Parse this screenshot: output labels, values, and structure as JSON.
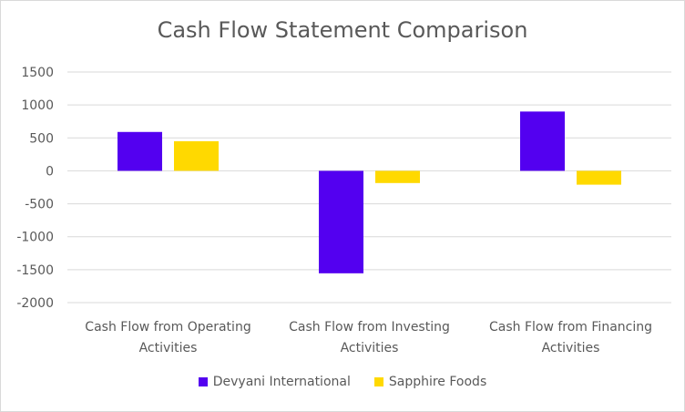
{
  "chart_data": {
    "type": "bar",
    "title": "Cash Flow Statement Comparison",
    "categories": [
      [
        "Cash Flow from Operating",
        "Activities"
      ],
      [
        "Cash Flow from Investing",
        "Activities"
      ],
      [
        "Cash Flow from Financing",
        "Activities"
      ]
    ],
    "series": [
      {
        "name": "Devyani International",
        "color": "#5300F0",
        "values": [
          590,
          -1555,
          900
        ]
      },
      {
        "name": "Sapphire Foods",
        "color": "#FFD900",
        "values": [
          450,
          -185,
          -210
        ]
      }
    ],
    "ylim": [
      -2000,
      1500
    ],
    "yticks": [
      1500,
      1000,
      500,
      0,
      -500,
      -1000,
      -1500,
      -2000
    ],
    "grid": true,
    "legend": "bottom"
  }
}
